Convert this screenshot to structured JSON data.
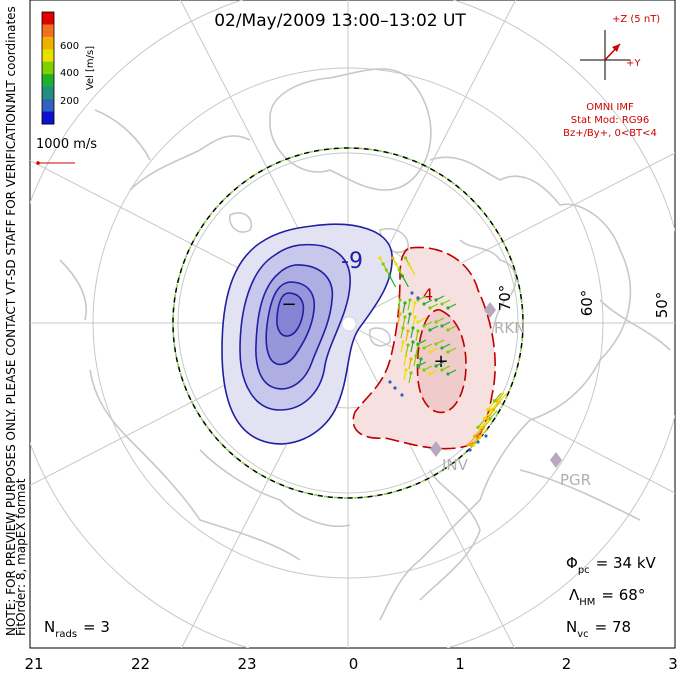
{
  "title": "02/May/2009 13:00–13:02 UT",
  "side_note": "NOTE: FOR PREVIEW PURPOSES ONLY. PLEASE CONTACT VT-SD STAFF FOR VERIFICATION.",
  "side_format": "FitOrder: 8, mapEX format",
  "color_bar": {
    "title": "Vel [m/s]",
    "coords": "MLT coordinates",
    "ticks": [
      "600",
      "400",
      "200"
    ],
    "colors": [
      "#e00000",
      "#f07020",
      "#f0b000",
      "#e8e000",
      "#80d000",
      "#20b030",
      "#209080",
      "#3060c0",
      "#1010d0"
    ]
  },
  "scale_vector_label": "1000 m/s",
  "imf": {
    "z_label": "+Z (5 nT)",
    "y_label": "+Y",
    "source": "OMNI IMF",
    "stat_mod": "Stat Mod: RG96",
    "condition": "Bz+/By+, 0<BT<4"
  },
  "stats": {
    "phi_symbol": "Φ",
    "phi_sub": "pc",
    "phi_value": "= 34 kV",
    "lambda_symbol": "Λ",
    "lambda_sub": "HM",
    "lambda_value": "= 68°",
    "nvc_symbol": "N",
    "nvc_sub": "vc",
    "nvc_value": "= 78",
    "nrads_symbol": "N",
    "nrads_sub": "rads",
    "nrads_value": "= 3"
  },
  "contour_labels": {
    "neg": "-9",
    "pos": "4"
  },
  "stations": [
    "RKN",
    "INV",
    "PGR"
  ],
  "chart_data": {
    "type": "polar convection map",
    "x_ticks": [
      "21",
      "22",
      "23",
      "0",
      "1",
      "2",
      "3"
    ],
    "lat_labels": [
      "70°",
      "60°",
      "50°"
    ],
    "lat_circles_deg": [
      80,
      70,
      60,
      50
    ],
    "hm_boundary_deg": 68,
    "potential_kv": 34,
    "n_vectors": 78,
    "n_radars": 3,
    "cells": [
      {
        "sign": "negative",
        "marker": "−",
        "label": "-9",
        "color": "#2020a0"
      },
      {
        "sign": "positive",
        "marker": "+",
        "label": "4",
        "color": "#c00000"
      }
    ]
  }
}
